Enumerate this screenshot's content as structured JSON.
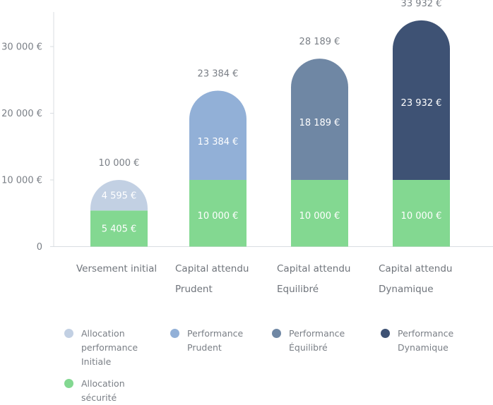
{
  "chart_data": {
    "type": "bar",
    "stacked": true,
    "categories": [
      [
        "Versement initial"
      ],
      [
        "Capital attendu",
        "Prudent"
      ],
      [
        "Capital attendu",
        "Equilibré"
      ],
      [
        "Capital attendu",
        "Dynamique"
      ]
    ],
    "y_ticks": [
      {
        "value": 0,
        "label": "0"
      },
      {
        "value": 10000,
        "label": "10 000 €"
      },
      {
        "value": 20000,
        "label": "20 000 €"
      },
      {
        "value": 30000,
        "label": "30 000 €"
      }
    ],
    "ylim": [
      0,
      35000
    ],
    "grid": false,
    "bars": [
      {
        "total": 10000,
        "total_label": "10 000 €",
        "segments": [
          {
            "series": "Allocation sécurité",
            "value": 5405,
            "label": "5 405 €",
            "color": "#83d891"
          },
          {
            "series": "Allocation performance Initiale",
            "value": 4595,
            "label": "4 595 €",
            "color": "#c2d0e3"
          }
        ]
      },
      {
        "total": 23384,
        "total_label": "23 384 €",
        "segments": [
          {
            "series": "Allocation sécurité",
            "value": 10000,
            "label": "10 000 €",
            "color": "#83d891"
          },
          {
            "series": "Performance Prudent",
            "value": 13384,
            "label": "13 384 €",
            "color": "#92b0d7"
          }
        ]
      },
      {
        "total": 28189,
        "total_label": "28 189 €",
        "segments": [
          {
            "series": "Allocation sécurité",
            "value": 10000,
            "label": "10 000 €",
            "color": "#83d891"
          },
          {
            "series": "Performance Équilibré",
            "value": 18189,
            "label": "18 189 €",
            "color": "#6f87a4"
          }
        ]
      },
      {
        "total": 33932,
        "total_label": "33 932 €",
        "segments": [
          {
            "series": "Allocation sécurité",
            "value": 10000,
            "label": "10 000 €",
            "color": "#83d891"
          },
          {
            "series": "Performance Dynamique",
            "value": 23932,
            "label": "23 932 €",
            "color": "#3e5274"
          }
        ]
      }
    ],
    "legend": {
      "placement": "bottom",
      "items": [
        {
          "label": "Allocation\nperformance\nInitiale",
          "color": "#c2d0e3"
        },
        {
          "label": "Performance\nPrudent",
          "color": "#92b0d7"
        },
        {
          "label": "Performance\nÉquilibré",
          "color": "#6f87a4"
        },
        {
          "label": "Performance\nDynamique",
          "color": "#3e5274"
        },
        {
          "label": "Allocation\nsécurité",
          "color": "#83d891"
        }
      ]
    }
  }
}
